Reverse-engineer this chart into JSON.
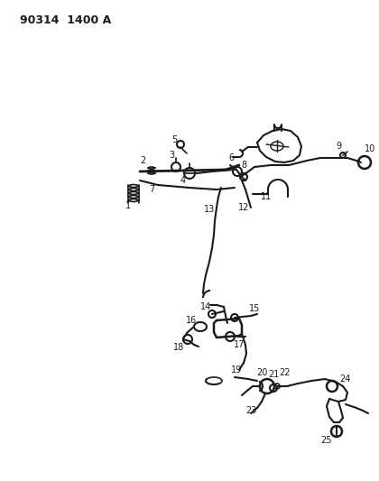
{
  "title": "90314  1400 A",
  "background_color": "#ffffff",
  "line_color": "#1a1a1a",
  "text_color": "#1a1a1a",
  "fig_width": 4.2,
  "fig_height": 5.33,
  "dpi": 100
}
